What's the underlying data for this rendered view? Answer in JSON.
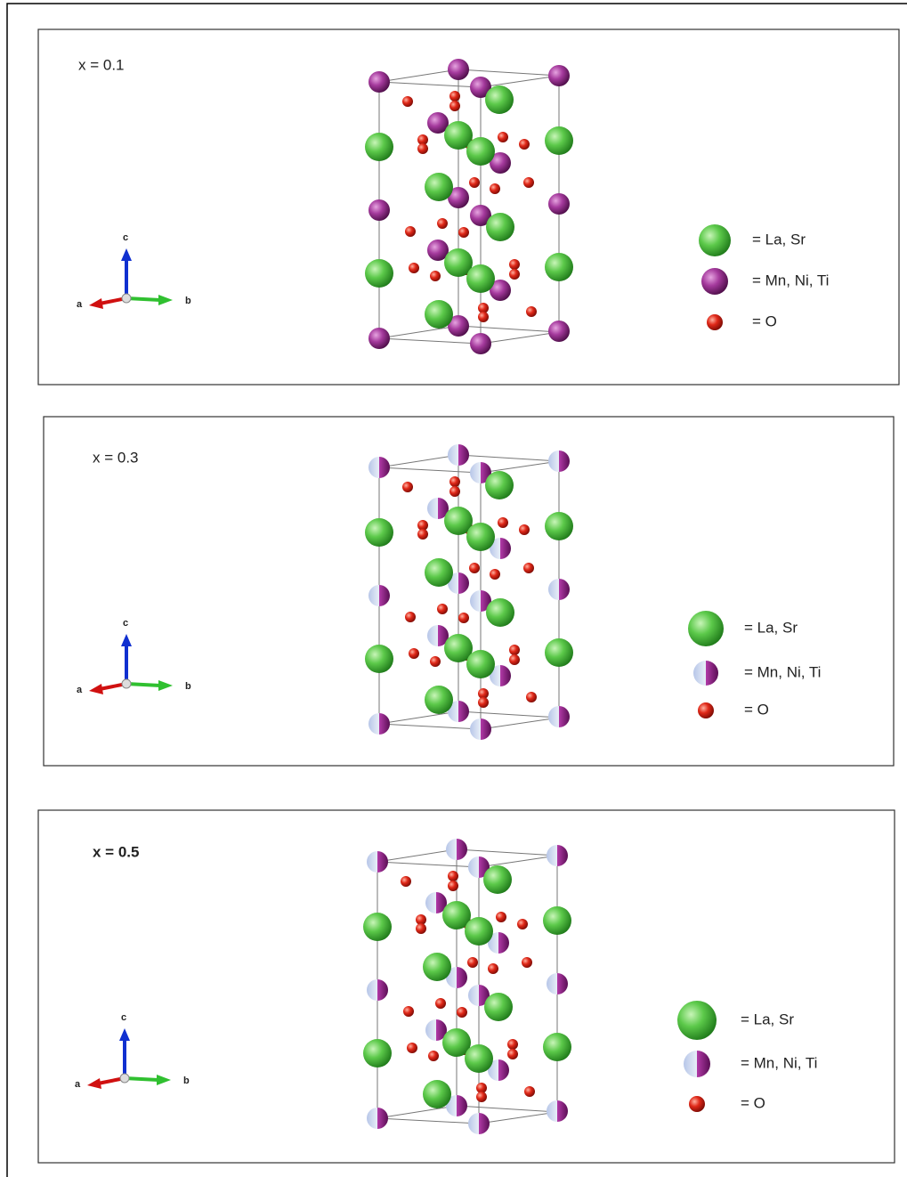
{
  "panels": [
    {
      "label": "x = 0.1",
      "axes": {
        "a": "a",
        "b": "b",
        "c": "c"
      },
      "legend": [
        "= La, Sr",
        "= Mn, Ni, Ti",
        "= O"
      ]
    },
    {
      "label": "x = 0.3",
      "axes": {
        "a": "a",
        "b": "b",
        "c": "c"
      },
      "legend": [
        "= La, Sr",
        "= Mn, Ni, Ti",
        "= O"
      ]
    },
    {
      "label": "x = 0.5",
      "axes": {
        "a": "a",
        "b": "b",
        "c": "c"
      },
      "legend": [
        "= La, Sr",
        "= Mn, Ni, Ti",
        "= O"
      ]
    }
  ]
}
